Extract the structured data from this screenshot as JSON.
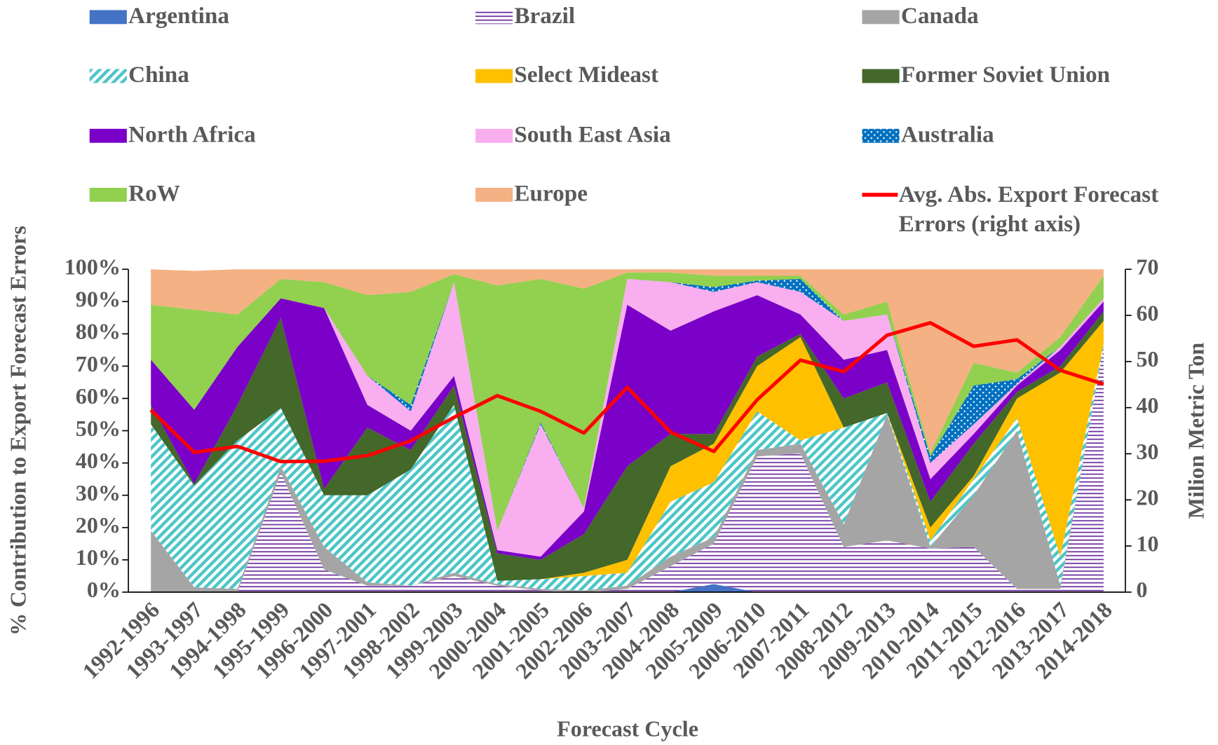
{
  "chart_data": {
    "type": "area",
    "stacked": true,
    "x_label": "Forecast Cycle",
    "y_label": "% Contribution to Export Forecast Errors",
    "y2_label": "Milion Metric Ton",
    "categories": [
      "1992-1996",
      "1993-1997",
      "1994-1998",
      "1995-1999",
      "1996-2000",
      "1997-2001",
      "1998-2002",
      "1999-2003",
      "2000-2004",
      "2001-2005",
      "2002-2006",
      "2003-2007",
      "2004-2008",
      "2005-2009",
      "2006-2010",
      "2007-2011",
      "2008-2012",
      "2009-2013",
      "2010-2014",
      "2011-2015",
      "2012-2016",
      "2013-2017",
      "2014-2018"
    ],
    "ylim": [
      0,
      100
    ],
    "yticks": [
      {
        "value": 0,
        "label": "0%"
      },
      {
        "value": 10,
        "label": "10%"
      },
      {
        "value": 20,
        "label": "20%"
      },
      {
        "value": 30,
        "label": "30%"
      },
      {
        "value": 40,
        "label": "40%"
      },
      {
        "value": 50,
        "label": "50%"
      },
      {
        "value": 60,
        "label": "60%"
      },
      {
        "value": 70,
        "label": "70%"
      },
      {
        "value": 80,
        "label": "80%"
      },
      {
        "value": 90,
        "label": "90%"
      },
      {
        "value": 100,
        "label": "100%"
      }
    ],
    "y2lim": [
      0,
      70
    ],
    "y2ticks": [
      0,
      10,
      20,
      30,
      40,
      50,
      60,
      70
    ],
    "series": [
      {
        "name": "Argentina",
        "color": "#4472c4",
        "values": [
          0,
          0,
          0,
          0,
          0,
          0,
          0,
          0,
          0,
          0,
          0,
          0,
          0,
          2.5,
          0,
          0,
          0,
          0,
          0,
          0,
          0,
          0,
          0
        ]
      },
      {
        "name": "Brazil",
        "color": "#7030a0",
        "pattern": "horizontal",
        "values": [
          0,
          0,
          0,
          37,
          7,
          2,
          2,
          5,
          2,
          0.5,
          0,
          1,
          8,
          12.5,
          42,
          43,
          14,
          16,
          13.5,
          14,
          1,
          1,
          76
        ]
      },
      {
        "name": "Canada",
        "color": "#a5a5a5",
        "values": [
          19,
          1.5,
          1,
          2,
          7,
          1,
          0,
          1,
          0.5,
          0.5,
          0.5,
          1,
          3,
          2,
          2,
          3,
          7,
          39,
          0.5,
          16,
          49,
          1,
          0
        ]
      },
      {
        "name": "China",
        "color": "#4bc6c8",
        "pattern": "diagonal",
        "values": [
          33,
          31.5,
          46,
          18,
          16,
          27,
          36,
          52,
          1,
          3,
          4.5,
          4,
          17,
          17,
          12,
          1,
          30,
          0.5,
          2,
          5,
          4,
          9,
          1
        ]
      },
      {
        "name": "Select Mideast",
        "color": "#ffc000",
        "values": [
          0,
          0,
          0,
          0,
          0,
          0,
          0,
          0,
          0,
          0,
          1,
          4,
          11,
          12,
          14,
          32,
          0,
          0,
          4,
          1,
          6,
          57,
          7
        ]
      },
      {
        "name": "Former Soviet Union",
        "color": "#44672a",
        "values": [
          6,
          0.5,
          11,
          28,
          2,
          21,
          6,
          6,
          8.5,
          6,
          12,
          29,
          10,
          3,
          3,
          1,
          9,
          9.5,
          8,
          10,
          2,
          2,
          3
        ]
      },
      {
        "name": "North Africa",
        "color": "#7b00c8",
        "values": [
          14,
          23,
          18,
          6,
          56,
          7,
          6,
          3,
          1,
          1,
          7,
          50,
          32,
          38,
          19,
          6,
          12,
          10,
          7,
          3,
          2,
          5,
          3
        ]
      },
      {
        "name": "South East Asia",
        "color": "#f9aef0",
        "values": [
          0,
          0,
          0,
          0,
          0,
          9,
          6,
          29,
          6,
          41,
          1,
          8,
          15,
          6,
          4,
          7,
          12,
          11,
          5,
          3,
          0.5,
          1,
          1
        ]
      },
      {
        "name": "Australia",
        "color": "#0070c0",
        "pattern": "dots",
        "values": [
          0,
          0,
          0,
          0,
          0,
          0,
          2,
          0,
          0,
          0.5,
          0,
          0,
          0,
          1.5,
          0.5,
          4,
          0,
          0,
          2,
          12,
          1.5,
          0,
          0
        ]
      },
      {
        "name": "RoW",
        "color": "#92d050",
        "values": [
          17,
          31,
          10,
          6,
          8,
          25,
          35,
          2.5,
          76,
          44.5,
          68,
          2,
          3,
          3.5,
          1.5,
          1,
          2,
          4,
          1,
          7,
          2,
          3,
          7
        ]
      },
      {
        "name": "Europe",
        "color": "#f4b183",
        "values": [
          11,
          12,
          14,
          3,
          4,
          8,
          7,
          1.5,
          5,
          3,
          6,
          1,
          1,
          2,
          2,
          2,
          14,
          10,
          57,
          29,
          32,
          21,
          2
        ]
      },
      {
        "name": "Avg. Abs. Export Forecast Errors (right axis)",
        "color": "#ff0000",
        "type": "line",
        "axis": "y2",
        "values": [
          39.5,
          30.3,
          31.6,
          28.3,
          28.4,
          29.6,
          32.8,
          37.9,
          42.6,
          39.2,
          34.5,
          44.4,
          34.7,
          30.5,
          41.7,
          50.3,
          47.8,
          55.7,
          58.4,
          53.3,
          54.7,
          48.1,
          45.1
        ]
      }
    ]
  }
}
